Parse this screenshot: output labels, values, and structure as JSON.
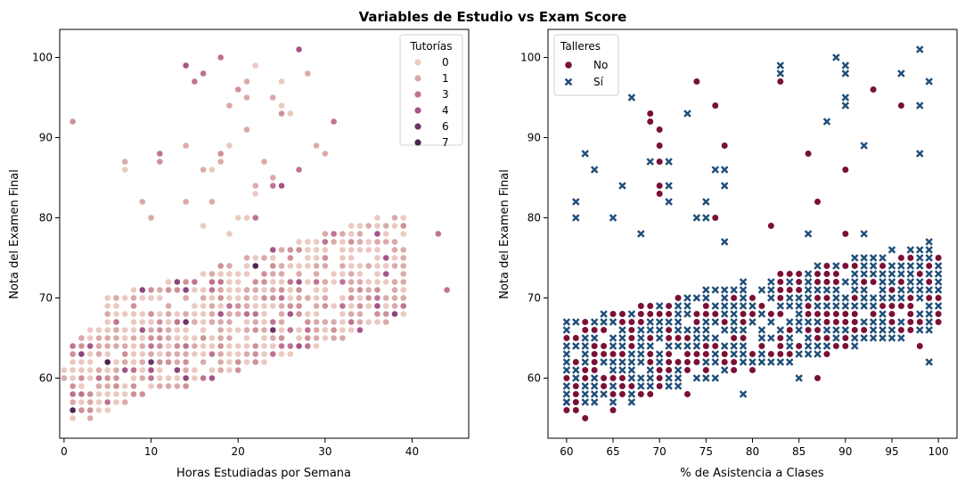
{
  "figure": {
    "title": "Variables de Estudio vs Exam Score"
  },
  "chart_data": [
    {
      "type": "scatter",
      "xlabel": "Horas Estudiadas por Semana",
      "ylabel": "Nota del Examen Final",
      "xlim": [
        -0.5,
        46.5
      ],
      "ylim": [
        52.5,
        103.5
      ],
      "xticks": [
        0,
        10,
        20,
        30,
        40
      ],
      "yticks": [
        60,
        70,
        80,
        90,
        100
      ],
      "grid": false,
      "legend": {
        "title": "Tutorías",
        "placement": "top-right",
        "entries": [
          "0",
          "1",
          "3",
          "4",
          "6",
          "7"
        ]
      },
      "hue_colors": {
        "0": "#ebc9c0",
        "1": "#dba9a9",
        "2": "#cf9097",
        "3": "#bf7390",
        "4": "#a65585",
        "5": "#8d4479",
        "6": "#6e3367",
        "7": "#4d2450"
      },
      "outliers": [
        [
          1,
          92,
          2
        ],
        [
          14,
          99,
          4
        ],
        [
          15,
          97,
          3
        ],
        [
          16,
          98,
          3
        ],
        [
          18,
          100,
          3
        ],
        [
          19,
          94,
          1
        ],
        [
          20,
          96,
          2
        ],
        [
          21,
          97,
          1
        ],
        [
          21,
          95,
          1
        ],
        [
          22,
          99,
          0
        ],
        [
          24,
          95,
          1
        ],
        [
          25,
          94,
          0
        ],
        [
          25,
          93,
          2
        ],
        [
          26,
          93,
          0
        ],
        [
          25,
          97,
          0
        ],
        [
          27,
          101,
          4
        ],
        [
          28,
          98,
          1
        ],
        [
          30,
          88,
          1
        ],
        [
          31,
          92,
          3
        ],
        [
          7,
          87,
          1
        ],
        [
          7,
          86,
          0
        ],
        [
          9,
          82,
          1
        ],
        [
          10,
          80,
          1
        ],
        [
          11,
          88,
          3
        ],
        [
          11,
          87,
          2
        ],
        [
          14,
          89,
          1
        ],
        [
          14,
          82,
          1
        ],
        [
          16,
          86,
          1
        ],
        [
          16,
          79,
          0
        ],
        [
          17,
          86,
          0
        ],
        [
          17,
          82,
          1
        ],
        [
          18,
          88,
          2
        ],
        [
          18,
          87,
          1
        ],
        [
          19,
          89,
          0
        ],
        [
          19,
          78,
          0
        ],
        [
          20,
          80,
          0
        ],
        [
          21,
          80,
          0
        ],
        [
          21,
          91,
          1
        ],
        [
          22,
          80,
          3
        ],
        [
          22,
          84,
          1
        ],
        [
          22,
          83,
          0
        ],
        [
          23,
          87,
          1
        ],
        [
          24,
          85,
          1
        ],
        [
          24,
          84,
          3
        ],
        [
          25,
          84,
          4
        ],
        [
          27,
          86,
          3
        ],
        [
          29,
          89,
          1
        ]
      ],
      "trend": {
        "a": 59.5,
        "b": 0.32,
        "spread_low": 4.5,
        "spread_high": 8.5
      },
      "x_range": [
        1,
        39
      ]
    },
    {
      "type": "scatter",
      "xlabel": "% de Asistencia a Clases",
      "ylabel": "Nota del Examen Final",
      "xlim": [
        58,
        102
      ],
      "ylim": [
        52.5,
        103.5
      ],
      "xticks": [
        60,
        65,
        70,
        75,
        80,
        85,
        90,
        95,
        100
      ],
      "yticks": [
        60,
        70,
        80,
        90,
        100
      ],
      "grid": false,
      "legend": {
        "title": "Talleres",
        "placement": "top-left",
        "entries": [
          "No",
          "Sí"
        ]
      },
      "style_colors": {
        "No": "#7a1035",
        "Sí": "#1f4e79"
      },
      "outliers": [
        [
          69,
          93,
          "No"
        ],
        [
          69,
          92,
          "No"
        ],
        [
          70,
          91,
          "No"
        ],
        [
          70,
          89,
          "No"
        ],
        [
          70,
          87,
          "No"
        ],
        [
          70,
          84,
          "No"
        ],
        [
          70,
          83,
          "No"
        ],
        [
          74,
          97,
          "No"
        ],
        [
          76,
          94,
          "No"
        ],
        [
          76,
          80,
          "No"
        ],
        [
          77,
          89,
          "No"
        ],
        [
          82,
          79,
          "No"
        ],
        [
          83,
          97,
          "No"
        ],
        [
          86,
          88,
          "No"
        ],
        [
          87,
          82,
          "No"
        ],
        [
          90,
          86,
          "No"
        ],
        [
          90,
          78,
          "No"
        ],
        [
          93,
          96,
          "No"
        ],
        [
          96,
          94,
          "No"
        ],
        [
          61,
          82,
          "Sí"
        ],
        [
          61,
          80,
          "Sí"
        ],
        [
          62,
          88,
          "Sí"
        ],
        [
          63,
          86,
          "Sí"
        ],
        [
          65,
          80,
          "Sí"
        ],
        [
          66,
          84,
          "Sí"
        ],
        [
          67,
          95,
          "Sí"
        ],
        [
          68,
          78,
          "Sí"
        ],
        [
          69,
          87,
          "Sí"
        ],
        [
          71,
          87,
          "Sí"
        ],
        [
          71,
          84,
          "Sí"
        ],
        [
          71,
          82,
          "Sí"
        ],
        [
          73,
          93,
          "Sí"
        ],
        [
          74,
          80,
          "Sí"
        ],
        [
          75,
          82,
          "Sí"
        ],
        [
          75,
          80,
          "Sí"
        ],
        [
          76,
          86,
          "Sí"
        ],
        [
          77,
          86,
          "Sí"
        ],
        [
          77,
          84,
          "Sí"
        ],
        [
          77,
          77,
          "Sí"
        ],
        [
          83,
          99,
          "Sí"
        ],
        [
          83,
          98,
          "Sí"
        ],
        [
          86,
          78,
          "Sí"
        ],
        [
          88,
          92,
          "Sí"
        ],
        [
          89,
          100,
          "Sí"
        ],
        [
          90,
          99,
          "Sí"
        ],
        [
          90,
          98,
          "Sí"
        ],
        [
          90,
          95,
          "Sí"
        ],
        [
          90,
          94,
          "Sí"
        ],
        [
          92,
          89,
          "Sí"
        ],
        [
          92,
          78,
          "Sí"
        ],
        [
          96,
          98,
          "Sí"
        ],
        [
          98,
          101,
          "Sí"
        ],
        [
          98,
          94,
          "Sí"
        ],
        [
          98,
          88,
          "Sí"
        ],
        [
          99,
          97,
          "Sí"
        ]
      ],
      "trend": {
        "a": 45,
        "b": 0.26,
        "spread_low": 4.5,
        "spread_high": 6
      },
      "x_range": [
        60,
        100
      ]
    }
  ]
}
